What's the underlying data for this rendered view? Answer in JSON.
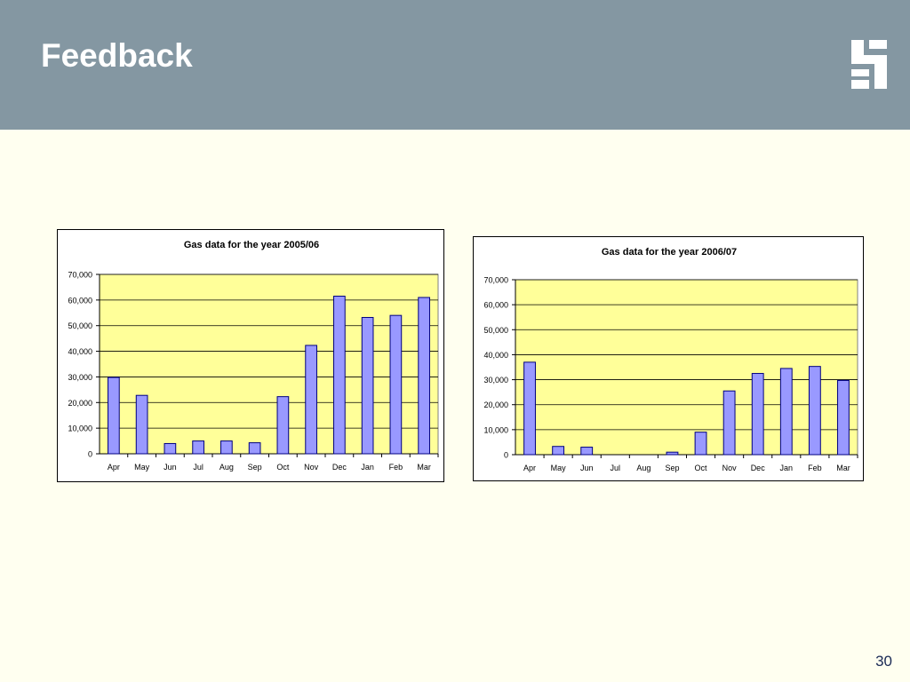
{
  "slide": {
    "title": "Feedback",
    "page_number": "30",
    "header_color": "#8497a2",
    "background_color": "#fffff0",
    "logo": "company-logo"
  },
  "colors": {
    "plot_area": "#ffff99",
    "bar_fill": "#9999ff",
    "bar_stroke": "#000080",
    "gridline": "#000000"
  },
  "chart_data": [
    {
      "type": "bar",
      "title": "Gas data for the year 2005/06",
      "categories": [
        "Apr",
        "May",
        "Jun",
        "Jul",
        "Aug",
        "Sep",
        "Oct",
        "Nov",
        "Dec",
        "Jan",
        "Feb",
        "Mar"
      ],
      "values": [
        29800,
        22800,
        4000,
        5000,
        5000,
        4300,
        22300,
        42300,
        61500,
        53200,
        54000,
        61000
      ],
      "yticks": [
        "0",
        "10,000",
        "20,000",
        "30,000",
        "40,000",
        "50,000",
        "60,000",
        "70,000"
      ],
      "ylim": [
        0,
        70000
      ],
      "grid": true,
      "legend": false
    },
    {
      "type": "bar",
      "title": "Gas data for the year 2006/07",
      "categories": [
        "Apr",
        "May",
        "Jun",
        "Jul",
        "Aug",
        "Sep",
        "Oct",
        "Nov",
        "Dec",
        "Jan",
        "Feb",
        "Mar"
      ],
      "values": [
        37000,
        3300,
        3000,
        0,
        0,
        1000,
        9000,
        25500,
        32500,
        34500,
        35300,
        29700
      ],
      "yticks": [
        "0",
        "10,000",
        "20,000",
        "30,000",
        "40,000",
        "50,000",
        "60,000",
        "70,000"
      ],
      "ylim": [
        0,
        70000
      ],
      "grid": true,
      "legend": false
    }
  ]
}
